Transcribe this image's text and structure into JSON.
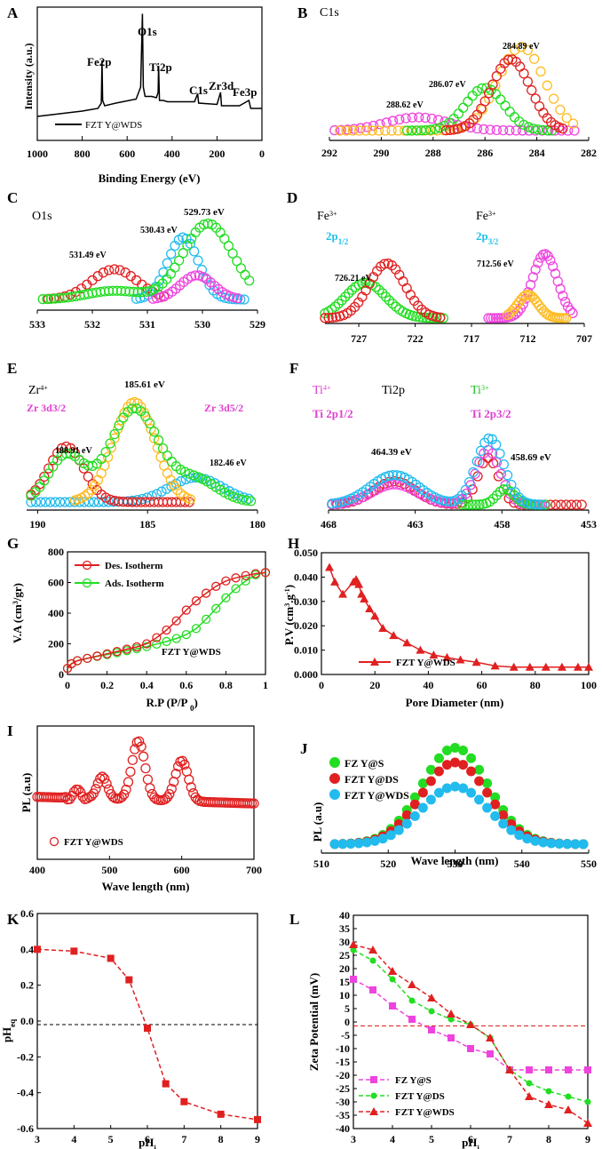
{
  "colors": {
    "red": "#e02020",
    "green": "#22dd22",
    "cyan": "#22bbee",
    "magenta": "#ee44dd",
    "orange": "#ffbb22",
    "label_cyan": "#20c0e8",
    "label_magenta": "#e040d0",
    "label_green": "#20c020"
  },
  "chart_data": [
    {
      "panel": "A",
      "type": "line",
      "title": "",
      "xlabel": "Binding Energy (eV)",
      "ylabel": "Intensity (a.u.)",
      "xlim": [
        1000,
        0
      ],
      "ylim": [
        0,
        100
      ],
      "xticks": [
        "1000",
        "800",
        "600",
        "400",
        "200",
        "0"
      ],
      "legend": [
        "FZT Y@WDS"
      ],
      "legend_position": "bottom-left",
      "series": [
        {
          "name": "FZT Y@WDS",
          "x": [
            1000,
            900,
            800,
            730,
            715,
            712,
            709,
            700,
            650,
            560,
            540,
            532,
            528,
            520,
            490,
            470,
            462,
            460,
            456,
            440,
            420,
            300,
            286,
            282,
            200,
            184,
            180,
            100,
            58,
            50,
            0
          ],
          "y": [
            18,
            20,
            22,
            24,
            28,
            60,
            30,
            26,
            28,
            31,
            40,
            95,
            40,
            33,
            33,
            32,
            36,
            56,
            30,
            30,
            29,
            29,
            35,
            28,
            27,
            36,
            26,
            26,
            30,
            24,
            24
          ]
        }
      ],
      "annotations": [
        "Fe2p",
        "O1s",
        "Ti2p",
        "C1s",
        "Zr3d",
        "Fe3p"
      ]
    },
    {
      "panel": "B",
      "type": "scatter",
      "title": "C1s",
      "xlim": [
        292,
        282
      ],
      "ylim": [
        0,
        100
      ],
      "xticks": [
        "292",
        "290",
        "288",
        "286",
        "284",
        "282"
      ],
      "series": [
        {
          "name": "284.89 eV",
          "center": 284.6,
          "height": 88
        },
        {
          "name": "284.9 eV",
          "center": 285.0,
          "height": 75
        },
        {
          "name": "286.07 eV",
          "center": 286.0,
          "height": 45
        },
        {
          "name": "288.62 eV",
          "center": 288.6,
          "height": 15
        }
      ],
      "annotations": [
        "284.89 eV",
        "286.07 eV",
        "288.62 eV"
      ]
    },
    {
      "panel": "C",
      "type": "scatter",
      "title": "O1s",
      "xlim": [
        533,
        529
      ],
      "ylim": [
        0,
        100
      ],
      "xticks": [
        "533",
        "532",
        "531",
        "530",
        "529"
      ],
      "series": [
        {
          "name": "529.73 eV",
          "center": 529.9,
          "height": 88
        },
        {
          "name": "530.43 eV",
          "center": 530.35,
          "height": 72
        },
        {
          "name": "531.49 eV",
          "center": 531.6,
          "height": 35
        }
      ],
      "annotations": [
        "529.73 eV",
        "530.43 eV",
        "531.49 eV"
      ]
    },
    {
      "panel": "D",
      "type": "scatter",
      "title": "",
      "xlim": [
        730,
        707
      ],
      "xticks": [
        "727",
        "722",
        "717",
        "712",
        "707"
      ],
      "series": [
        {
          "name": "Fe 2p1/2 a",
          "center": 724.5,
          "height": 70
        },
        {
          "name": "Fe 2p1/2 b",
          "center": 726.4,
          "height": 45
        },
        {
          "name": "Fe 2p3/2 a",
          "center": 710.5,
          "height": 82
        },
        {
          "name": "Fe 2p3/2 b",
          "center": 712.0,
          "height": 30
        }
      ],
      "annotations": [
        "726.21 eV",
        "712.56 eV"
      ]
    },
    {
      "panel": "E",
      "type": "scatter",
      "title": "",
      "xlim": [
        190.5,
        180
      ],
      "ylim": [
        0,
        100
      ],
      "xticks": [
        "190",
        "185",
        "180"
      ],
      "series": [
        {
          "name": "185.61 eV",
          "center": 185.6,
          "height": 90
        },
        {
          "name": "188.91 eV",
          "center": 188.7,
          "height": 50
        },
        {
          "name": "182.46 eV",
          "center": 182.8,
          "height": 22
        }
      ],
      "annotations": [
        "185.61 eV",
        "188.91 eV",
        "182.46 eV"
      ]
    },
    {
      "panel": "F",
      "type": "scatter",
      "title": "Ti2p",
      "xlim": [
        468,
        453
      ],
      "ylim": [
        0,
        100
      ],
      "xticks": [
        "468",
        "463",
        "458",
        "453"
      ],
      "series": [
        {
          "name": "464.39 eV",
          "center": 464.2,
          "height": 38
        },
        {
          "name": "458.69 eV",
          "center": 458.7,
          "height": 85
        },
        {
          "name": "Ti3+",
          "center": 457.8,
          "height": 20
        }
      ],
      "annotations": [
        "464.39 eV",
        "458.69 eV"
      ]
    },
    {
      "panel": "G",
      "type": "line",
      "xlabel": "R.P (P/P0)",
      "ylabel": "V.A (cm3/gr)",
      "xlim": [
        0,
        1
      ],
      "ylim": [
        0,
        800
      ],
      "xticks": [
        "0",
        "0.2",
        "0.4",
        "0.6",
        "0.8",
        "1"
      ],
      "yticks": [
        "0",
        "200",
        "400",
        "600",
        "800"
      ],
      "legend_position": "top-left",
      "series": [
        {
          "name": "Des. Isotherm",
          "x": [
            0,
            0.02,
            0.05,
            0.1,
            0.15,
            0.2,
            0.25,
            0.3,
            0.35,
            0.4,
            0.45,
            0.5,
            0.55,
            0.6,
            0.65,
            0.7,
            0.75,
            0.8,
            0.85,
            0.9,
            0.95,
            1
          ],
          "y": [
            40,
            70,
            90,
            105,
            120,
            135,
            150,
            165,
            180,
            200,
            240,
            290,
            350,
            420,
            480,
            530,
            575,
            610,
            630,
            645,
            658,
            665
          ]
        },
        {
          "name": "Ads. Isotherm",
          "x": [
            0,
            0.02,
            0.05,
            0.1,
            0.15,
            0.2,
            0.25,
            0.3,
            0.35,
            0.4,
            0.45,
            0.5,
            0.55,
            0.6,
            0.65,
            0.7,
            0.75,
            0.8,
            0.85,
            0.9,
            0.95,
            1
          ],
          "y": [
            40,
            70,
            90,
            105,
            118,
            130,
            142,
            155,
            168,
            182,
            198,
            215,
            235,
            260,
            300,
            360,
            430,
            500,
            560,
            610,
            650,
            665
          ]
        }
      ],
      "annotations": [
        "FZT Y@WDS"
      ]
    },
    {
      "panel": "H",
      "type": "line",
      "xlabel": "Pore Diameter (nm)",
      "ylabel": "P.V (cm3.g-1)",
      "xlim": [
        0,
        100
      ],
      "ylim": [
        0,
        0.05
      ],
      "xticks": [
        "0",
        "20",
        "40",
        "60",
        "80",
        "100"
      ],
      "yticks": [
        "0.000",
        "0.010",
        "0.020",
        "0.030",
        "0.040",
        "0.050"
      ],
      "legend_position": "bottom-left",
      "series": [
        {
          "name": "FZT Y@WDS",
          "x": [
            3,
            5,
            8,
            12,
            13,
            14,
            15,
            16,
            18,
            20,
            23,
            27,
            32,
            37,
            42,
            47,
            52,
            58,
            65,
            72,
            78,
            84,
            90,
            96,
            100
          ],
          "y": [
            0.044,
            0.038,
            0.033,
            0.038,
            0.039,
            0.037,
            0.033,
            0.031,
            0.027,
            0.024,
            0.019,
            0.016,
            0.013,
            0.01,
            0.008,
            0.007,
            0.006,
            0.005,
            0.0035,
            0.003,
            0.003,
            0.003,
            0.003,
            0.003,
            0.003
          ]
        }
      ]
    },
    {
      "panel": "I",
      "type": "scatter",
      "xlabel": "Wave length (nm)",
      "ylabel": "PL (a.u)",
      "xlim": [
        400,
        700
      ],
      "xticks": [
        "400",
        "500",
        "600",
        "700"
      ],
      "legend_position": "bottom-left",
      "series": [
        {
          "name": "FZT Y@WDS",
          "peaks": [
            {
              "center": 455,
              "height": 12
            },
            {
              "center": 490,
              "height": 30
            },
            {
              "center": 540,
              "height": 80
            },
            {
              "center": 600,
              "height": 55
            }
          ]
        }
      ]
    },
    {
      "panel": "J",
      "type": "scatter",
      "xlabel": "Wave length (nm)",
      "ylabel": "PL (a.u)",
      "xlim": [
        510,
        550
      ],
      "xticks": [
        "510",
        "520",
        "530",
        "540",
        "550"
      ],
      "legend_position": "top-left",
      "series": [
        {
          "name": "FZ Y@S",
          "center": 530,
          "height": 92
        },
        {
          "name": "FZT Y@DS",
          "center": 530,
          "height": 78
        },
        {
          "name": "FZT Y@WDS",
          "center": 530,
          "height": 55
        }
      ]
    },
    {
      "panel": "K",
      "type": "line",
      "xlabel": "pHi",
      "ylabel": "pHeq",
      "xlim": [
        3,
        9
      ],
      "ylim": [
        -0.6,
        0.6
      ],
      "xticks": [
        "3",
        "4",
        "5",
        "6",
        "7",
        "8",
        "9"
      ],
      "yticks": [
        "-0.6",
        "-0.4",
        "-0.2",
        "0.0",
        "0.2",
        "0.4",
        "0.6"
      ],
      "series": [
        {
          "name": "pHeq",
          "x": [
            3,
            4,
            5,
            5.5,
            6,
            6.5,
            7,
            8,
            9
          ],
          "y": [
            0.4,
            0.39,
            0.35,
            0.23,
            -0.04,
            -0.35,
            -0.45,
            -0.52,
            -0.55
          ]
        }
      ]
    },
    {
      "panel": "L",
      "type": "line",
      "xlabel": "pHi",
      "ylabel": "Zeta Potential (mV)",
      "xlim": [
        3,
        9
      ],
      "ylim": [
        -40,
        40
      ],
      "xticks": [
        "3",
        "4",
        "5",
        "6",
        "7",
        "8",
        "9"
      ],
      "yticks": [
        "-40",
        "-35",
        "-30",
        "-25",
        "-20",
        "-15",
        "-10",
        "-5",
        "0",
        "5",
        "10",
        "15",
        "20",
        "25",
        "30",
        "35",
        "40"
      ],
      "legend_position": "bottom-left",
      "series": [
        {
          "name": "FZ Y@S",
          "x": [
            3,
            3.5,
            4,
            4.5,
            5,
            5.5,
            6,
            6.5,
            7,
            7.5,
            8,
            8.5,
            9
          ],
          "y": [
            16,
            12,
            6,
            1,
            -3,
            -6,
            -10,
            -12,
            -18,
            -18,
            -18,
            -18,
            -18
          ]
        },
        {
          "name": "FZT Y@DS",
          "x": [
            3,
            3.5,
            4,
            4.5,
            5,
            5.5,
            6,
            6.5,
            7,
            7.5,
            8,
            8.5,
            9
          ],
          "y": [
            27,
            23,
            16,
            8,
            4,
            1,
            -1,
            -6,
            -18,
            -23,
            -26,
            -28,
            -30
          ]
        },
        {
          "name": "FZT Y@WDS",
          "x": [
            3,
            3.5,
            4,
            4.5,
            5,
            5.5,
            6,
            6.5,
            7,
            7.5,
            8,
            8.5,
            9
          ],
          "y": [
            29,
            27,
            19,
            14,
            9,
            3,
            -1,
            -6,
            -18,
            -28,
            -31,
            -33,
            -38
          ]
        }
      ]
    }
  ]
}
